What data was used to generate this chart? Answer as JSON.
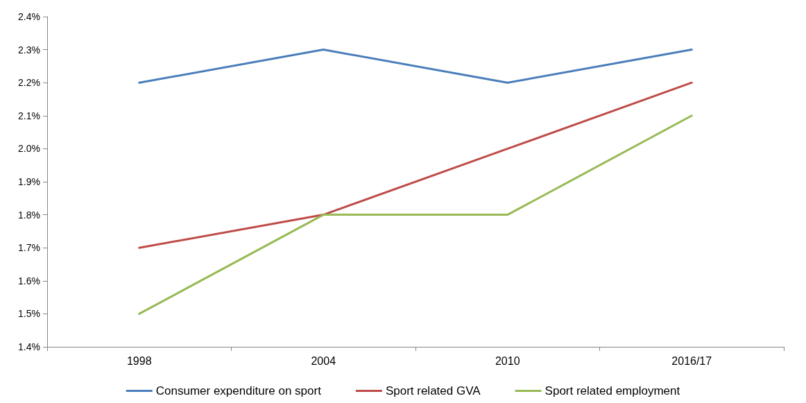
{
  "chart_data": {
    "type": "line",
    "categories": [
      "1998",
      "2004",
      "2010",
      "2016/17"
    ],
    "series": [
      {
        "name": "Consumer expenditure on sport",
        "color": "#4a7ebb",
        "values": [
          2.2,
          2.3,
          2.2,
          2.3
        ]
      },
      {
        "name": "Sport related GVA",
        "color": "#be4b48",
        "values": [
          1.7,
          1.8,
          2.0,
          2.2
        ]
      },
      {
        "name": "Sport related employment",
        "color": "#98b954",
        "values": [
          1.5,
          1.8,
          1.8,
          2.1
        ]
      }
    ],
    "ylim": [
      1.4,
      2.4
    ],
    "yticks": [
      {
        "value": 1.4,
        "label": "1.4%"
      },
      {
        "value": 1.5,
        "label": "1.5%"
      },
      {
        "value": 1.6,
        "label": "1.6%"
      },
      {
        "value": 1.7,
        "label": "1.7%"
      },
      {
        "value": 1.8,
        "label": "1.8%"
      },
      {
        "value": 1.9,
        "label": "1.9%"
      },
      {
        "value": 2.0,
        "label": "2.0%"
      },
      {
        "value": 2.1,
        "label": "2.1%"
      },
      {
        "value": 2.2,
        "label": "2.2%"
      },
      {
        "value": 2.3,
        "label": "2.3%"
      },
      {
        "value": 2.4,
        "label": "2.4%"
      }
    ],
    "grid": false,
    "legend": "bottom",
    "marker": "none",
    "line_style": "solid"
  }
}
